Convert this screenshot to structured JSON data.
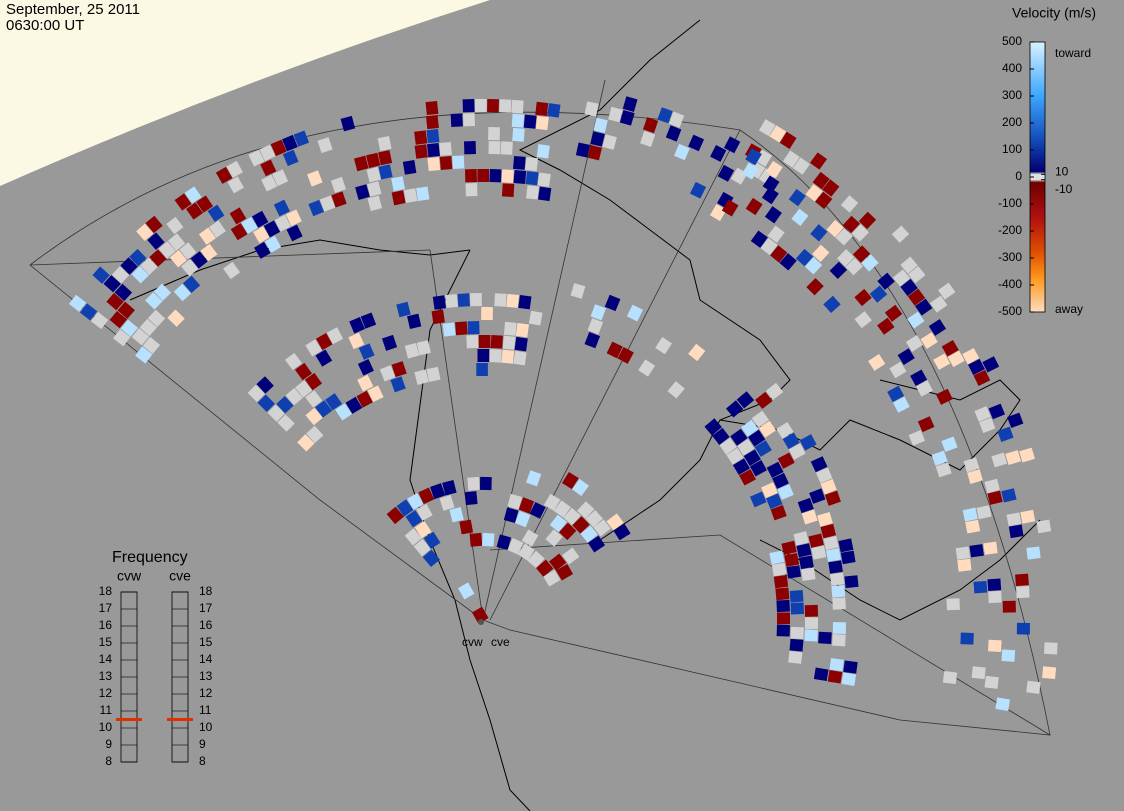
{
  "header": {
    "date": "September, 25 2011",
    "time": "0630:00 UT"
  },
  "velocity_scale": {
    "title": "Velocity (m/s)",
    "ticks": [
      500,
      400,
      300,
      200,
      100,
      0,
      -100,
      -200,
      -300,
      -400,
      -500
    ],
    "inner_ticks": [
      10,
      -10
    ],
    "toward": "toward",
    "away": "away"
  },
  "frequency": {
    "title": "Frequency",
    "ticks": [
      18,
      17,
      16,
      15,
      14,
      13,
      12,
      11,
      10,
      9,
      8
    ],
    "radars": [
      {
        "name": "cvw",
        "value": 10.5
      },
      {
        "name": "cve",
        "value": 10.5
      }
    ]
  },
  "sites": [
    "cvw",
    "cve"
  ]
}
